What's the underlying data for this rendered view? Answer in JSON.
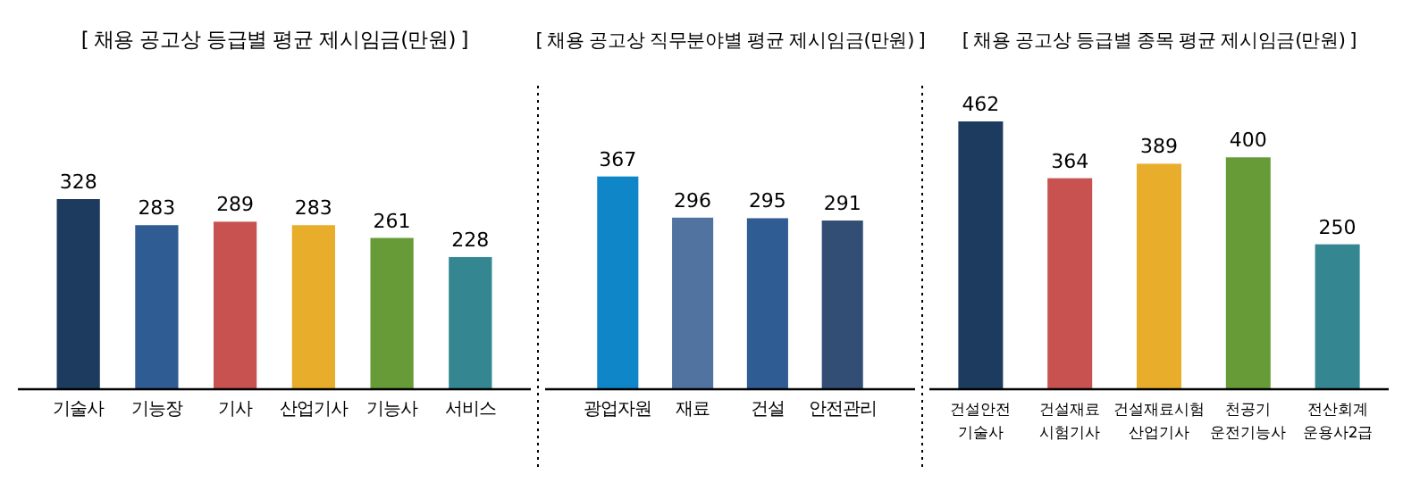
{
  "chart_data": [
    {
      "type": "bar",
      "title": "[ 채용 공고상 등급별 평균 제시임금(만원) ]",
      "categories": [
        "기술사",
        "기능장",
        "기사",
        "산업기사",
        "기능사",
        "서비스"
      ],
      "values": [
        328,
        283,
        289,
        283,
        261,
        228
      ],
      "colors": [
        "#1d3b5f",
        "#2f5d93",
        "#c85250",
        "#e9ad2c",
        "#679b38",
        "#348690"
      ],
      "data_labels": true
    },
    {
      "type": "bar",
      "title": "[ 채용 공고상 직무분야별 평균 제시임금(만원) ]",
      "categories": [
        "광업자원",
        "재료",
        "건설",
        "안전관리"
      ],
      "values": [
        367,
        296,
        295,
        291
      ],
      "colors": [
        "#0e86c8",
        "#5073a0",
        "#2f5d93",
        "#324e74"
      ],
      "data_labels": true
    },
    {
      "type": "bar",
      "title": "[ 채용 공고상 등급별 종목 평균 제시임금(만원) ]",
      "categories": [
        "건설안전\n기술사",
        "건설재료\n시험기사",
        "건설재료시험\n산업기사",
        "천공기\n운전기능사",
        "전산회계\n운용사2급"
      ],
      "values": [
        462,
        364,
        389,
        400,
        250
      ],
      "colors": [
        "#1d3b5f",
        "#c85250",
        "#e9ad2c",
        "#679b38",
        "#348690"
      ],
      "data_labels": true
    }
  ]
}
